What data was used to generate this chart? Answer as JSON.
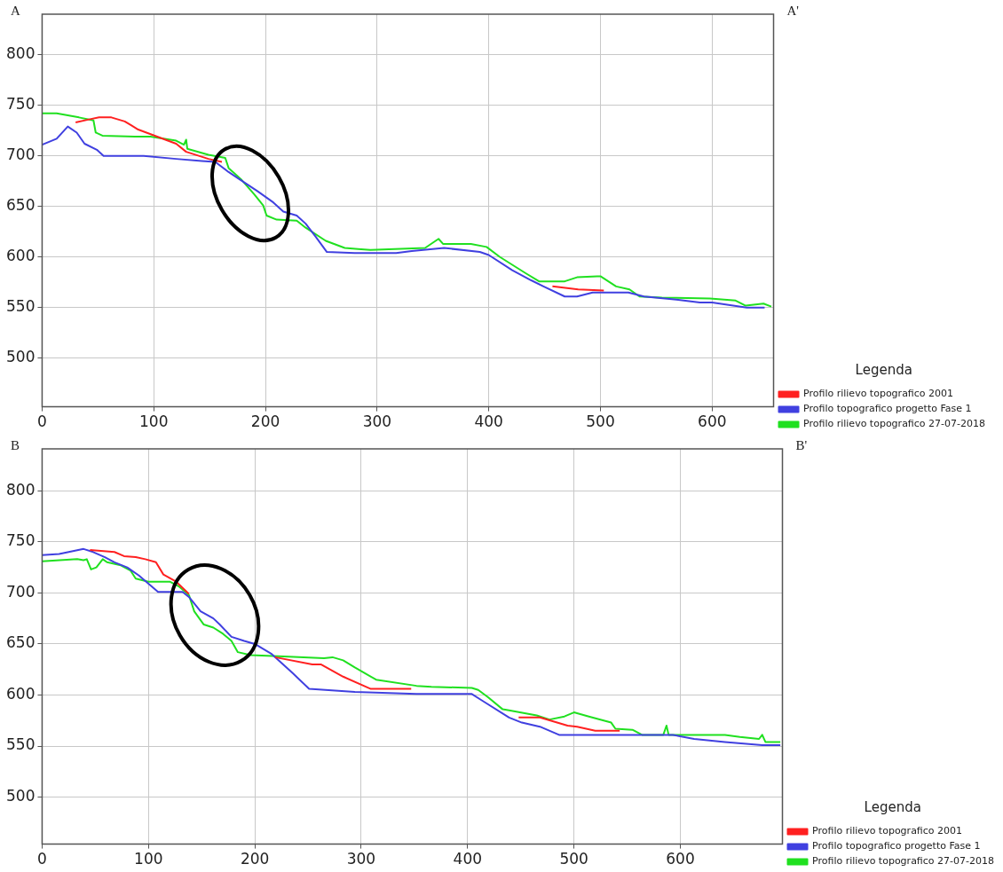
{
  "chart_data": [
    {
      "type": "line",
      "annotations": [
        "A",
        "A'"
      ],
      "legend": "right",
      "legend_title": "Legenda",
      "grid": true,
      "marker": "none",
      "xlim": [
        0,
        655
      ],
      "ylim": [
        452,
        840
      ],
      "xticks": [
        0,
        100,
        200,
        300,
        400,
        500,
        600
      ],
      "yticks": [
        500,
        550,
        600,
        650,
        700,
        750,
        800
      ],
      "series": [
        {
          "name": "Profilo rilievo topografico 2001",
          "color": "#ff2020",
          "x": [
            30,
            42,
            51,
            62,
            74,
            80,
            86,
            103,
            120,
            129,
            149,
            161,
            300,
            457,
            480,
            503
          ],
          "values": [
            733,
            736,
            738,
            738,
            734,
            730,
            726,
            719,
            712,
            704,
            697,
            694,
            null,
            571,
            568,
            567
          ]
        },
        {
          "name": "Profilo topografico progetto Fase 1",
          "color": "#4040e0",
          "x": [
            0,
            13,
            23,
            31,
            38,
            49,
            55,
            91,
            120,
            143,
            155,
            167,
            178,
            193,
            207,
            216,
            228,
            236,
            245,
            255,
            280,
            317,
            331,
            360,
            392,
            400,
            421,
            438,
            449,
            468,
            479,
            493,
            525,
            539,
            568,
            589,
            600,
            631,
            647
          ],
          "values": [
            711,
            717,
            729,
            723,
            712,
            706,
            700,
            700,
            697,
            695,
            694,
            684,
            676,
            665,
            654,
            645,
            641,
            633,
            620,
            605,
            604,
            604,
            606,
            609,
            605,
            602,
            587,
            577,
            571,
            561,
            561,
            565,
            565,
            561,
            558,
            555,
            555,
            550,
            550
          ]
        },
        {
          "name": "Profilo rilievo topografico 27-07-2018",
          "color": "#20e020",
          "x": [
            0,
            13,
            33,
            46,
            48,
            54,
            83,
            97,
            120,
            127,
            129,
            130,
            149,
            164,
            167,
            178,
            190,
            198,
            201,
            210,
            228,
            236,
            254,
            271,
            283,
            294,
            343,
            355,
            359,
            384,
            398,
            410,
            433,
            445,
            468,
            479,
            497,
            500,
            514,
            526,
            535,
            555,
            598,
            621,
            630,
            646,
            653
          ],
          "values": [
            742,
            742,
            738,
            735,
            723,
            720,
            719,
            719,
            715,
            711,
            716,
            707,
            701,
            698,
            688,
            677,
            662,
            651,
            641,
            637,
            636,
            629,
            616,
            609,
            608,
            607,
            609,
            618,
            613,
            613,
            610,
            600,
            584,
            576,
            576,
            580,
            581,
            581,
            571,
            568,
            561,
            560,
            559,
            557,
            552,
            554,
            551
          ]
        }
      ]
    },
    {
      "type": "line",
      "annotations": [
        "B",
        "B'"
      ],
      "legend": "right",
      "legend_title": "Legenda",
      "grid": true,
      "marker": "none",
      "xlim": [
        0,
        696
      ],
      "ylim": [
        454,
        841
      ],
      "xticks": [
        0,
        100,
        200,
        300,
        400,
        500,
        600
      ],
      "yticks": [
        500,
        550,
        600,
        650,
        700,
        750,
        800
      ],
      "series": [
        {
          "name": "Profilo rilievo topografico 2001",
          "color": "#ff2020",
          "x": [
            45,
            68,
            77,
            88,
            97,
            107,
            114,
            126,
            138,
            180,
            219,
            254,
            262,
            283,
            309,
            347,
            400,
            448,
            468,
            494,
            503,
            520,
            543
          ],
          "values": [
            742,
            740,
            736,
            735,
            733,
            730,
            718,
            711,
            699,
            null,
            637,
            630,
            630,
            618,
            606,
            606,
            null,
            578,
            578,
            570,
            569,
            565,
            565
          ]
        },
        {
          "name": "Profilo topografico progetto Fase 1",
          "color": "#4040e0",
          "x": [
            0,
            16,
            39,
            48,
            59,
            68,
            80,
            91,
            109,
            132,
            138,
            149,
            161,
            167,
            178,
            190,
            200,
            216,
            236,
            251,
            294,
            352,
            404,
            413,
            439,
            451,
            468,
            486,
            555,
            593,
            613,
            642,
            677,
            694
          ],
          "values": [
            737,
            738,
            743,
            740,
            735,
            730,
            725,
            717,
            701,
            701,
            696,
            682,
            675,
            669,
            657,
            653,
            650,
            640,
            621,
            606,
            603,
            601,
            601,
            595,
            578,
            573,
            569,
            561,
            561,
            561,
            557,
            554,
            551,
            551
          ]
        },
        {
          "name": "Profilo rilievo topografico 27-07-2018",
          "color": "#20e020",
          "x": [
            0,
            33,
            39,
            42,
            46,
            51,
            57,
            61,
            74,
            83,
            88,
            100,
            120,
            129,
            138,
            143,
            152,
            161,
            170,
            178,
            184,
            196,
            222,
            265,
            273,
            283,
            294,
            314,
            352,
            366,
            404,
            410,
            419,
            433,
            439,
            465,
            477,
            491,
            500,
            514,
            535,
            539,
            555,
            564,
            584,
            587,
            589,
            642,
            656,
            674,
            677,
            680,
            694
          ],
          "values": [
            731,
            733,
            732,
            733,
            723,
            725,
            733,
            730,
            727,
            722,
            714,
            711,
            711,
            706,
            698,
            682,
            669,
            666,
            660,
            653,
            642,
            639,
            638,
            636,
            637,
            634,
            627,
            615,
            609,
            608,
            607,
            605,
            598,
            586,
            585,
            580,
            576,
            579,
            583,
            579,
            573,
            567,
            566,
            561,
            561,
            570,
            561,
            561,
            559,
            557,
            561,
            554,
            554
          ]
        }
      ]
    }
  ]
}
